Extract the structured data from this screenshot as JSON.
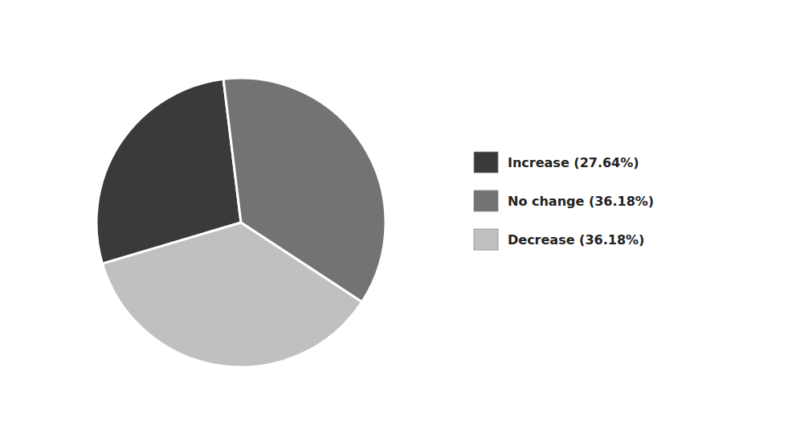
{
  "chart_data": {
    "type": "pie",
    "categories": [
      "Increase (27.64%)",
      "No change (36.18%)",
      "Decrease (36.18%)"
    ],
    "values": [
      27.64,
      36.18,
      36.18
    ],
    "colors": [
      "#3a3a3a",
      "#737373",
      "#c0c0c0"
    ],
    "legend": "right"
  }
}
